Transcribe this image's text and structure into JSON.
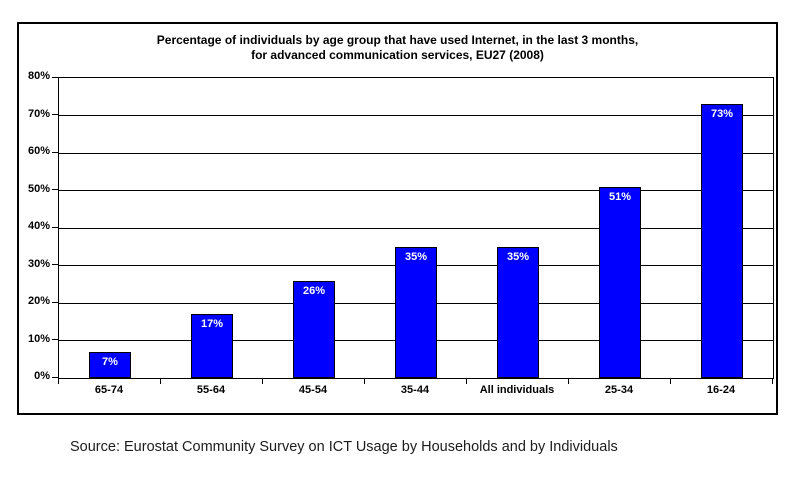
{
  "chart": {
    "title_line1": "Percentage of individuals by age group that have used Internet, in the last 3 months,",
    "title_line2": "for advanced communication services, EU27 (2008)"
  },
  "chart_data": {
    "type": "bar",
    "title": "Percentage of individuals by age group that have used Internet, in the last 3 months, for advanced communication services, EU27 (2008)",
    "categories": [
      "65-74",
      "55-64",
      "45-54",
      "35-44",
      "All individuals",
      "25-34",
      "16-24"
    ],
    "values": [
      7,
      17,
      26,
      35,
      35,
      51,
      73
    ],
    "value_labels": [
      "7%",
      "17%",
      "26%",
      "35%",
      "35%",
      "51%",
      "73%"
    ],
    "xlabel": "",
    "ylabel": "",
    "ylim": [
      0,
      80
    ],
    "ytick_step": 10,
    "ytick_labels": [
      "0%",
      "10%",
      "20%",
      "30%",
      "40%",
      "50%",
      "60%",
      "70%",
      "80%"
    ],
    "grid": true,
    "legend": false,
    "bar_color": "#0000ff",
    "bar_border_color": "#000000",
    "value_label_color": "#ffffff",
    "axis_color": "#000000"
  },
  "source": {
    "text": "Source: Eurostat Community Survey on ICT Usage by Households and by Individuals"
  }
}
